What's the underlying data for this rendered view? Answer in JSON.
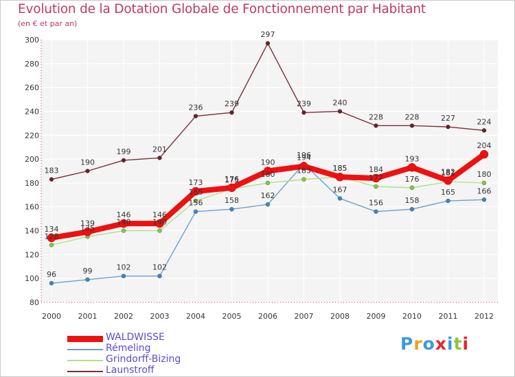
{
  "chart_data": {
    "type": "line",
    "title": "Evolution de la Dotation Globale de Fonctionnement par Habitant",
    "subtitle": "(en € et par an)",
    "xlabel": "",
    "ylabel": "",
    "ylim": [
      80,
      300
    ],
    "yticks": [
      80,
      100,
      120,
      140,
      160,
      180,
      200,
      220,
      240,
      260,
      280,
      300
    ],
    "categories": [
      "2000",
      "2001",
      "2002",
      "2003",
      "2004",
      "2005",
      "2006",
      "2007",
      "2008",
      "2009",
      "2010",
      "2011",
      "2012"
    ],
    "grid": true,
    "legend_position": "bottom-left",
    "series": [
      {
        "name": "WALDWISSE",
        "color": "#ee1111",
        "marker_color": "#ee1111",
        "emphasis": true,
        "values": [
          134,
          139,
          146,
          146,
          173,
          176,
          190,
          194,
          185,
          184,
          193,
          182,
          204
        ]
      },
      {
        "name": "Rémeling",
        "color": "#6a9fd0",
        "marker_color": "#3b86c6",
        "emphasis": false,
        "values": [
          96,
          99,
          102,
          102,
          156,
          158,
          162,
          196,
          167,
          156,
          158,
          165,
          166
        ]
      },
      {
        "name": "Grindorff-Bizing",
        "color": "#aee08a",
        "marker_color": "#7ccc3a",
        "emphasis": false,
        "values": [
          128,
          135,
          140,
          140,
          165,
          175,
          180,
          183,
          185,
          177,
          176,
          181,
          180
        ]
      },
      {
        "name": "Launstroff",
        "color": "#7b2c38",
        "marker_color": "#6e1f26",
        "emphasis": false,
        "values": [
          183,
          190,
          199,
          201,
          236,
          239,
          297,
          239,
          240,
          228,
          228,
          227,
          224
        ]
      }
    ]
  },
  "branding": {
    "logo_text": "Proxiti",
    "logo_colors": [
      "#3a9ad9",
      "#f0a020",
      "#3a9ad9",
      "#e8252a",
      "#3a9ad9",
      "#8dc63f",
      "#e8252a"
    ]
  }
}
